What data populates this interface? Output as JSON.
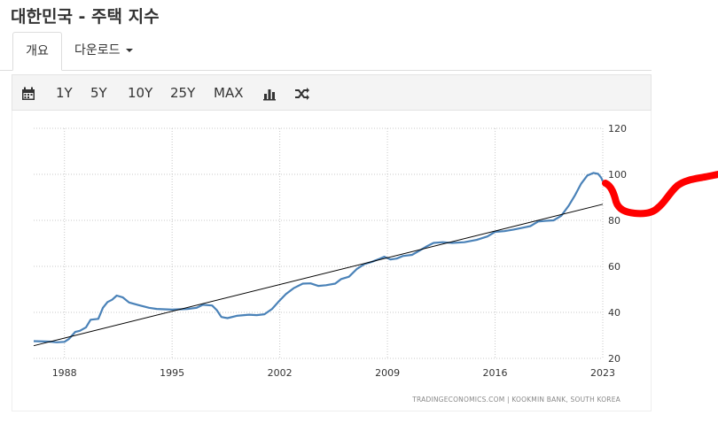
{
  "page": {
    "title": "대한민국 - 주택 지수"
  },
  "tabs": {
    "overview": "개요",
    "download": "다운로드"
  },
  "toolbar": {
    "ranges": [
      "1Y",
      "5Y",
      "10Y",
      "25Y",
      "MAX"
    ]
  },
  "source": "TRADINGECONOMICS.COM  |  KOOKMIN BANK, SOUTH KOREA",
  "colors": {
    "series": "#4a82b8",
    "trend": "#000000",
    "annotation": "#ff0000"
  },
  "icons": [
    "calendar-icon",
    "bar-chart-icon",
    "shuffle-icon"
  ],
  "chart_data": {
    "type": "line",
    "title": "",
    "xlabel": "",
    "ylabel": "",
    "ylim": [
      20,
      120
    ],
    "y_ticks": [
      20,
      40,
      60,
      80,
      100,
      120
    ],
    "x_ticks": [
      "1988",
      "1995",
      "2002",
      "2009",
      "2016",
      "2023"
    ],
    "grid": true,
    "series": [
      {
        "points": [
          [
            1986.0,
            27.5
          ],
          [
            1987.0,
            27.3
          ],
          [
            1987.5,
            27.0
          ],
          [
            1988.0,
            27.2
          ],
          [
            1988.3,
            28.5
          ],
          [
            1988.7,
            31.5
          ],
          [
            1989.0,
            32.0
          ],
          [
            1989.4,
            33.5
          ],
          [
            1989.7,
            36.8
          ],
          [
            1990.2,
            37.2
          ],
          [
            1990.5,
            42.0
          ],
          [
            1990.8,
            44.5
          ],
          [
            1991.1,
            45.5
          ],
          [
            1991.4,
            47.3
          ],
          [
            1991.8,
            46.5
          ],
          [
            1992.2,
            44.3
          ],
          [
            1992.8,
            43.2
          ],
          [
            1993.5,
            42.0
          ],
          [
            1994.0,
            41.5
          ],
          [
            1995.0,
            41.2
          ],
          [
            1996.0,
            41.5
          ],
          [
            1996.6,
            42.0
          ],
          [
            1997.0,
            43.3
          ],
          [
            1997.6,
            43.0
          ],
          [
            1997.9,
            41.0
          ],
          [
            1998.2,
            38.0
          ],
          [
            1998.6,
            37.5
          ],
          [
            1999.2,
            38.5
          ],
          [
            2000.0,
            39.0
          ],
          [
            2000.5,
            38.8
          ],
          [
            2001.0,
            39.2
          ],
          [
            2001.5,
            41.5
          ],
          [
            2001.9,
            44.5
          ],
          [
            2002.4,
            48.0
          ],
          [
            2002.9,
            50.5
          ],
          [
            2003.5,
            52.5
          ],
          [
            2004.0,
            52.6
          ],
          [
            2004.5,
            51.5
          ],
          [
            2005.0,
            51.8
          ],
          [
            2005.6,
            52.5
          ],
          [
            2006.0,
            54.5
          ],
          [
            2006.5,
            55.5
          ],
          [
            2007.0,
            58.8
          ],
          [
            2007.5,
            61.0
          ],
          [
            2008.0,
            62.0
          ],
          [
            2008.5,
            63.3
          ],
          [
            2008.8,
            64.2
          ],
          [
            2009.2,
            63.0
          ],
          [
            2009.6,
            63.4
          ],
          [
            2010.0,
            64.5
          ],
          [
            2010.6,
            65.0
          ],
          [
            2011.0,
            66.5
          ],
          [
            2011.5,
            68.5
          ],
          [
            2012.0,
            70.2
          ],
          [
            2012.6,
            70.5
          ],
          [
            2013.2,
            70.2
          ],
          [
            2014.0,
            70.5
          ],
          [
            2014.8,
            71.5
          ],
          [
            2015.5,
            73.0
          ],
          [
            2016.0,
            75.0
          ],
          [
            2016.6,
            75.3
          ],
          [
            2017.2,
            76.0
          ],
          [
            2017.8,
            76.8
          ],
          [
            2018.3,
            77.5
          ],
          [
            2018.8,
            79.5
          ],
          [
            2019.3,
            79.8
          ],
          [
            2019.8,
            80.0
          ],
          [
            2020.3,
            82.0
          ],
          [
            2020.8,
            86.5
          ],
          [
            2021.2,
            91.0
          ],
          [
            2021.6,
            96.0
          ],
          [
            2022.0,
            99.5
          ],
          [
            2022.4,
            100.6
          ],
          [
            2022.7,
            100.2
          ],
          [
            2022.9,
            98.5
          ],
          [
            2023.0,
            97.0
          ]
        ]
      },
      {
        "points": [
          [
            1986.0,
            25.5
          ],
          [
            2023.0,
            87.0
          ]
        ]
      }
    ]
  }
}
